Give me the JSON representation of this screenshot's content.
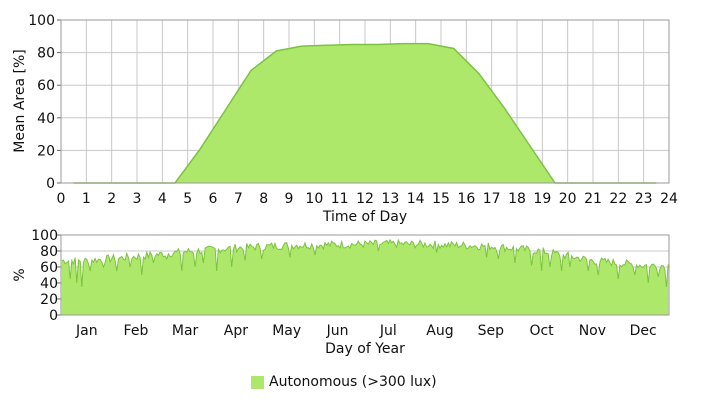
{
  "colors": {
    "fill": "#aee86a",
    "stroke": "#7cc241",
    "grid": "#c8c8c8",
    "axis": "#666666"
  },
  "legend": {
    "label": "Autonomous (>300 lux)"
  },
  "chart_data": [
    {
      "type": "area",
      "xlabel": "Time of Day",
      "ylabel": "Mean Area [%]",
      "xlim": [
        0,
        24
      ],
      "ylim": [
        0,
        100
      ],
      "xticks": [
        "0",
        "1",
        "2",
        "3",
        "4",
        "5",
        "6",
        "7",
        "8",
        "9",
        "10",
        "11",
        "12",
        "13",
        "14",
        "15",
        "16",
        "17",
        "18",
        "19",
        "20",
        "21",
        "22",
        "23",
        "24"
      ],
      "yticks": [
        "0",
        "20",
        "40",
        "60",
        "80",
        "100"
      ],
      "series": [
        {
          "name": "Autonomous (>300 lux)",
          "x": [
            0.5,
            1.5,
            2.5,
            3.5,
            4.5,
            5.5,
            6.5,
            7.5,
            8.5,
            9.5,
            10.5,
            11.5,
            12.5,
            13.5,
            14.5,
            15.5,
            16.5,
            17.5,
            18.5,
            19.5,
            20.5,
            21.5,
            22.5,
            23.5
          ],
          "y": [
            0,
            0,
            0,
            0,
            0,
            21,
            45,
            69,
            81,
            84,
            84.5,
            85,
            85,
            85.5,
            85.5,
            82.5,
            67,
            46,
            23,
            0,
            0,
            0,
            0,
            0
          ]
        }
      ]
    },
    {
      "type": "area",
      "xlabel": "Day of Year",
      "ylabel": "%",
      "ylim": [
        0,
        100
      ],
      "yticks": [
        "0",
        "20",
        "40",
        "60",
        "80",
        "100"
      ],
      "months": [
        "Jan",
        "Feb",
        "Mar",
        "Apr",
        "May",
        "Jun",
        "Jul",
        "Aug",
        "Sep",
        "Oct",
        "Nov",
        "Dec"
      ],
      "month_days": [
        31,
        28,
        31,
        30,
        31,
        30,
        31,
        31,
        30,
        31,
        30,
        31
      ],
      "monthly_mean": [
        68,
        73,
        79,
        84,
        87,
        88,
        89,
        88,
        86,
        80,
        68,
        62
      ],
      "dips": [
        [
          5,
          45
        ],
        [
          9,
          40
        ],
        [
          12,
          35
        ],
        [
          17,
          55
        ],
        [
          25,
          60
        ],
        [
          33,
          55
        ],
        [
          41,
          60
        ],
        [
          48,
          50
        ],
        [
          55,
          65
        ],
        [
          63,
          70
        ],
        [
          72,
          55
        ],
        [
          80,
          60
        ],
        [
          85,
          65
        ],
        [
          93,
          55
        ],
        [
          102,
          60
        ],
        [
          110,
          68
        ],
        [
          120,
          70
        ],
        [
          137,
          72
        ],
        [
          152,
          75
        ],
        [
          190,
          80
        ],
        [
          225,
          78
        ],
        [
          255,
          72
        ],
        [
          262,
          70
        ],
        [
          272,
          65
        ],
        [
          282,
          62
        ],
        [
          288,
          55
        ],
        [
          293,
          60
        ],
        [
          300,
          55
        ],
        [
          305,
          60
        ],
        [
          316,
          55
        ],
        [
          322,
          50
        ],
        [
          334,
          45
        ],
        [
          344,
          50
        ],
        [
          352,
          40
        ],
        [
          358,
          48
        ],
        [
          363,
          35
        ]
      ]
    }
  ]
}
